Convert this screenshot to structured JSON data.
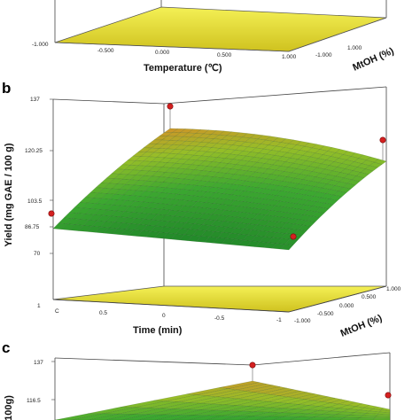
{
  "chart_data": [
    {
      "panel": "a",
      "type": "surface3d",
      "xlabel": "Temperature (℃)",
      "zlabel": "MtOH (%)",
      "x_ticks": [
        "-1.000",
        "-0.500",
        "0.000",
        "0.500",
        "1.000"
      ],
      "z_ticks": [
        "-1.000",
        "1.000"
      ]
    },
    {
      "panel": "b",
      "type": "surface3d",
      "ylabel": "Yield (mg GAE / 100 g)",
      "xlabel": "Time (min)",
      "zlabel": "MtOH (%)",
      "y_ticks": [
        "70",
        "86.75",
        "103.5",
        "120.25",
        "137"
      ],
      "x_ticks": [
        "1",
        "0.5",
        "0",
        "-0.5",
        "-1"
      ],
      "z_ticks": [
        "-1.000",
        "-0.500",
        "0.000",
        "0.500",
        "1.000"
      ],
      "corner_back_left": 86.75,
      "corner_back_right": 107,
      "corner_front_left": 124,
      "corner_front_right": 79,
      "design_points": [
        137,
        88,
        115,
        77
      ]
    },
    {
      "panel": "c",
      "type": "surface3d",
      "ylabel": "/100g)",
      "y_ticks": [
        "137",
        "116.5"
      ]
    }
  ]
}
